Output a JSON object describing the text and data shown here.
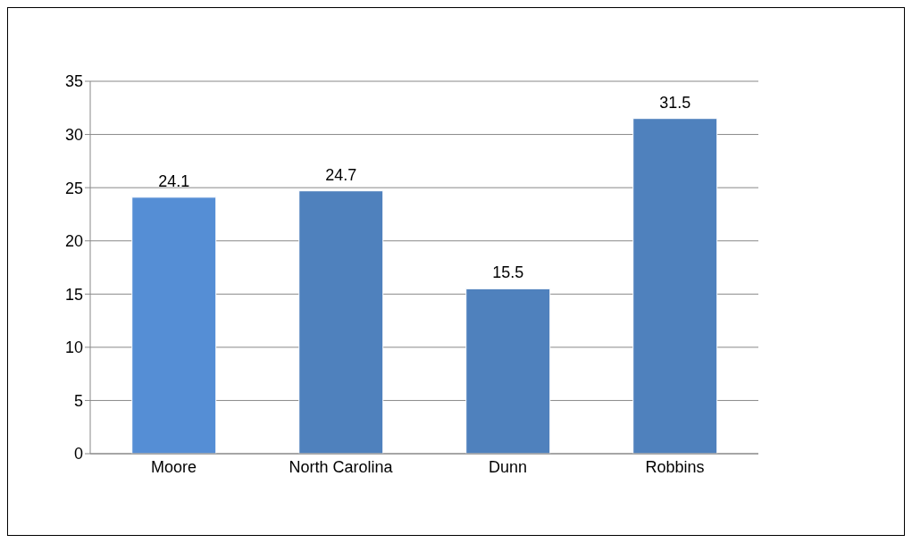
{
  "chart_data": {
    "type": "bar",
    "categories": [
      "Moore",
      "North Carolina",
      "Dunn",
      "Robbins"
    ],
    "values": [
      24.1,
      24.7,
      15.5,
      31.5
    ],
    "colors": [
      "#558ed5",
      "#4f81bd",
      "#4f81bd",
      "#4f81bd"
    ],
    "ylim": [
      0,
      35
    ],
    "yticks": [
      0,
      5,
      10,
      15,
      20,
      25,
      30,
      35
    ],
    "grid": "y",
    "data_labels": true
  }
}
